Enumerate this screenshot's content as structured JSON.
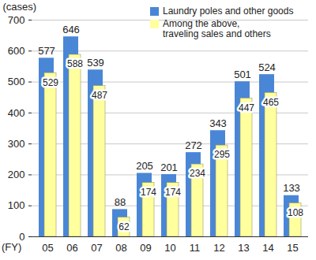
{
  "chart_data": {
    "type": "bar",
    "categories": [
      "05",
      "06",
      "07",
      "08",
      "09",
      "10",
      "11",
      "12",
      "13",
      "14",
      "15"
    ],
    "series": [
      {
        "name": "Laundry poles and other goods",
        "color": "#4a86d6",
        "values": [
          577,
          646,
          539,
          88,
          205,
          201,
          272,
          343,
          501,
          524,
          133
        ]
      },
      {
        "name": "Among the above, traveling sales and others",
        "color": "#ffff9e",
        "values": [
          529,
          588,
          487,
          62,
          174,
          174,
          234,
          295,
          447,
          465,
          108
        ]
      }
    ],
    "ylabel": "(cases)",
    "xlabel": "(FY)",
    "ylim": [
      0,
      700
    ],
    "yticks": [
      0,
      100,
      200,
      300,
      400,
      500,
      600,
      700
    ],
    "grid": true,
    "data_labels": true,
    "legend": "top-right"
  }
}
